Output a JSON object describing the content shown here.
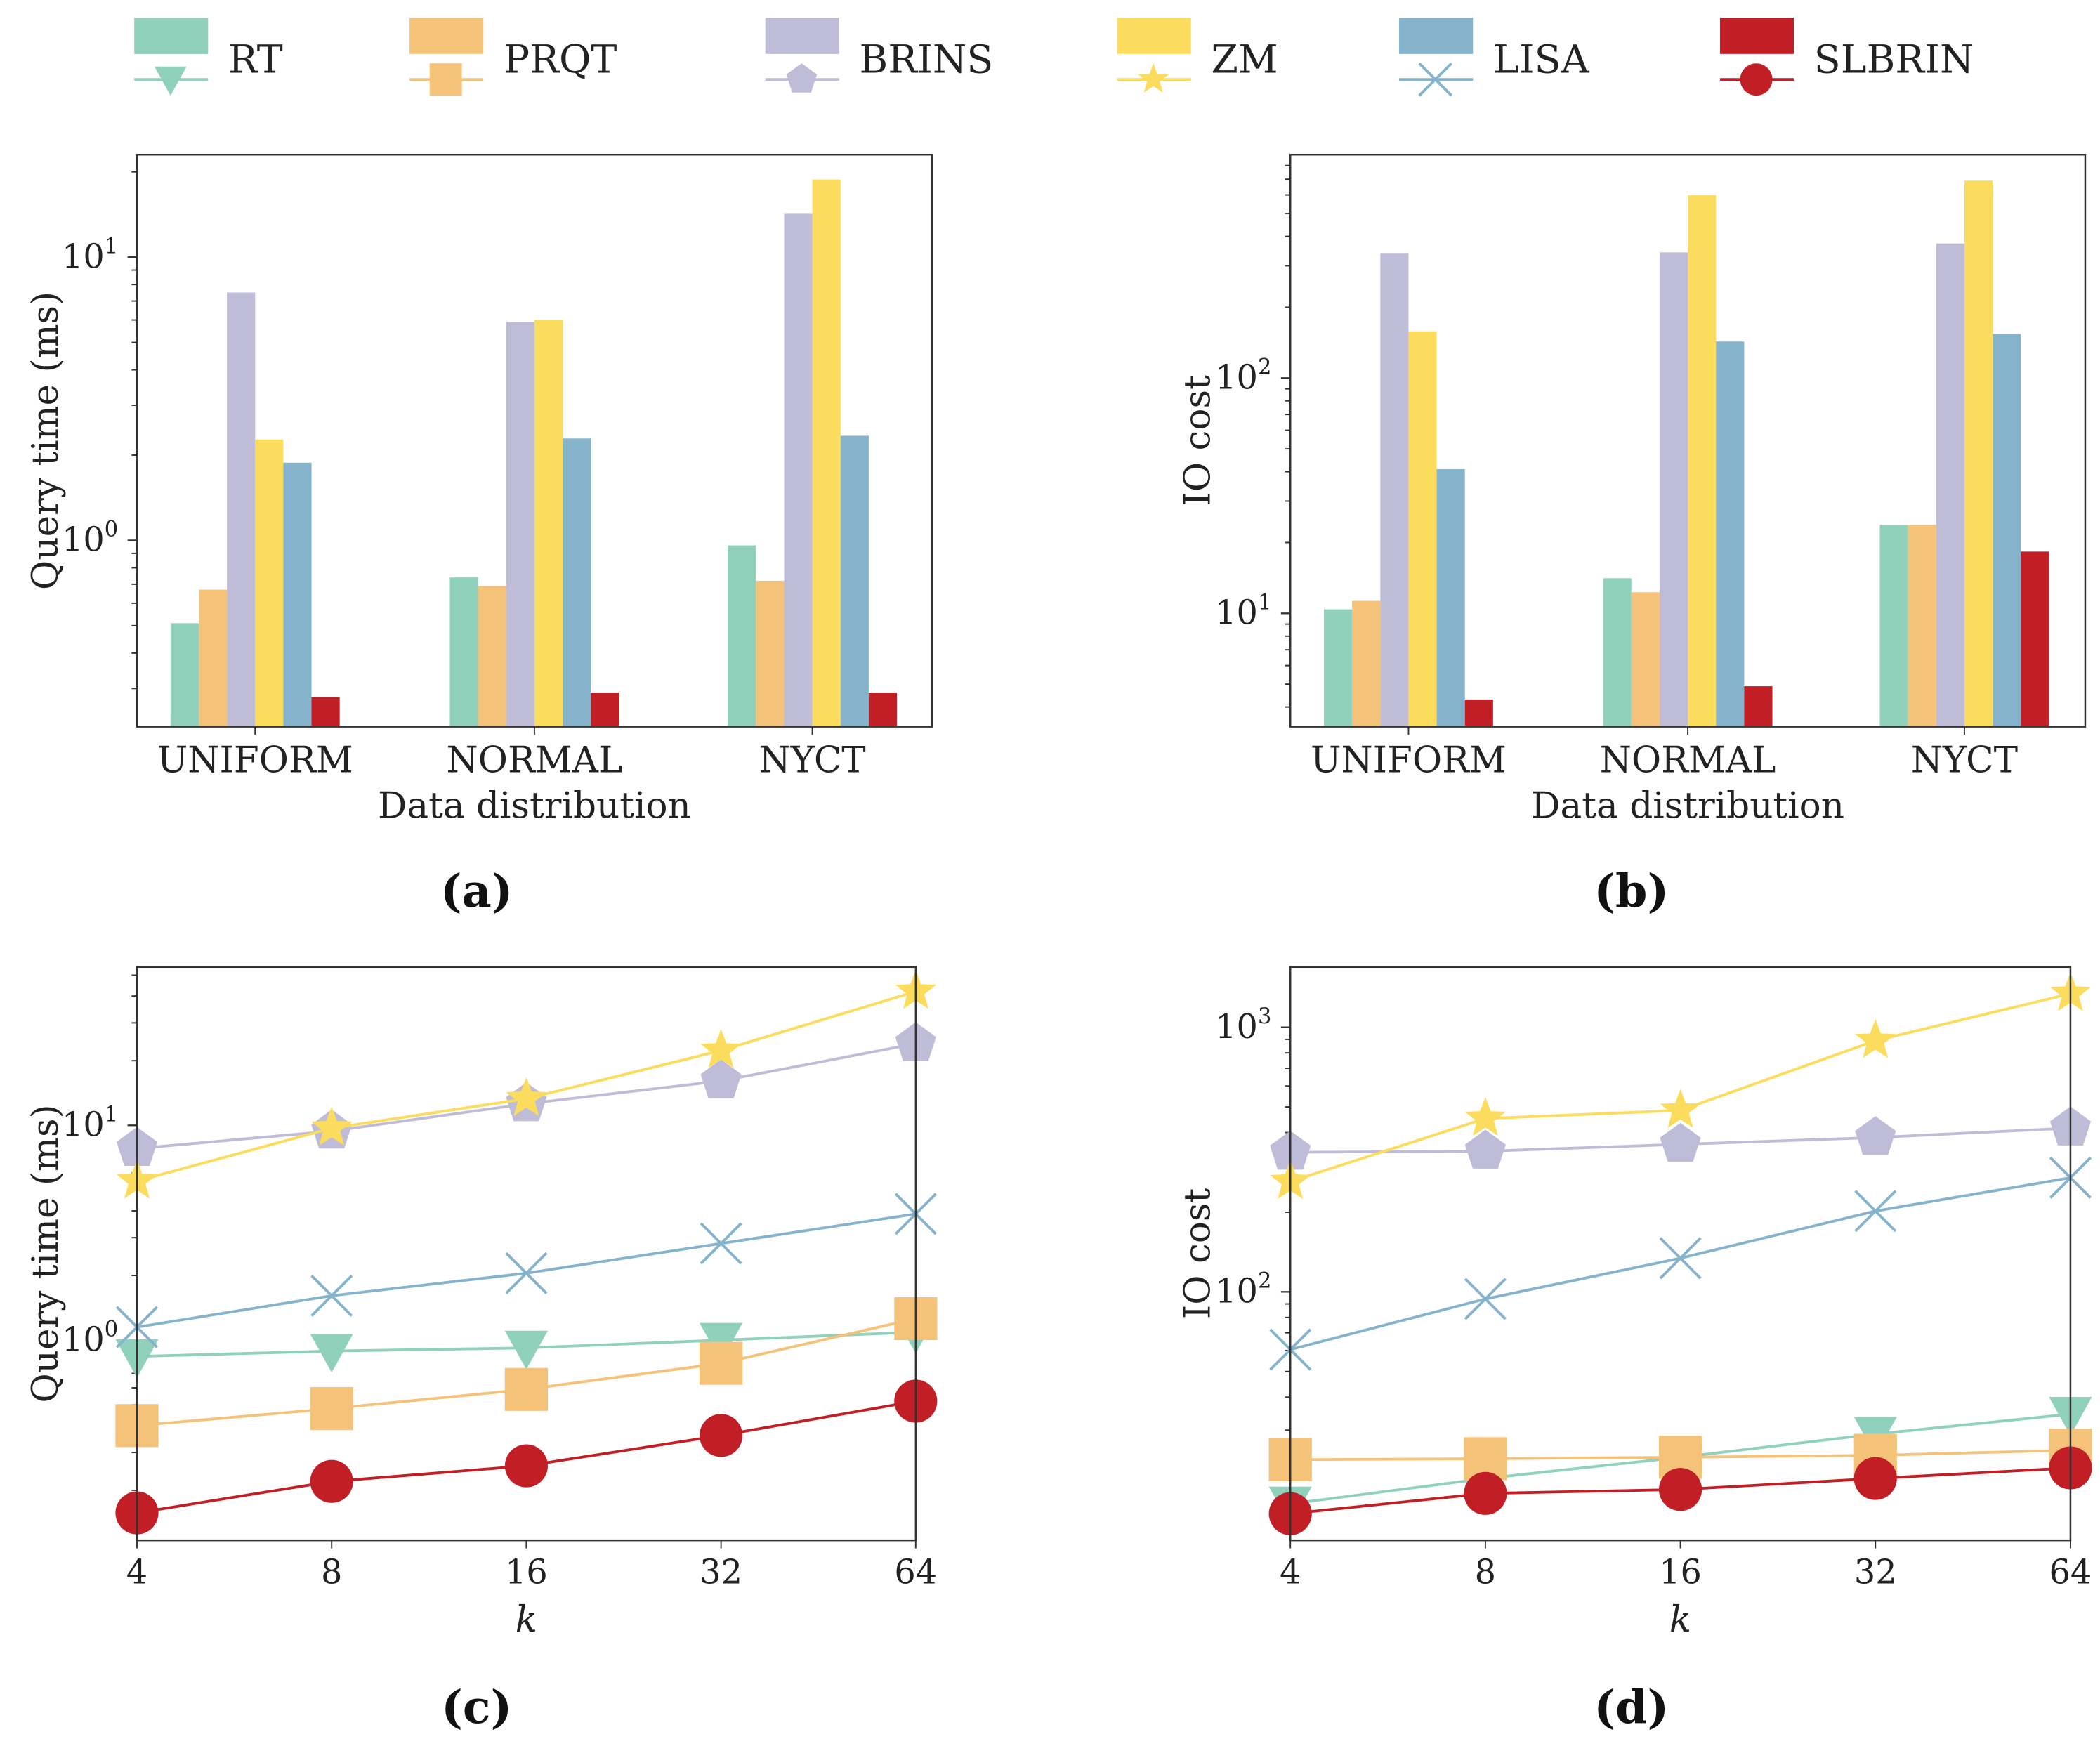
{
  "legend": [
    {
      "name": "RT",
      "color": "#8fd1bb",
      "marker": "triangle-down"
    },
    {
      "name": "PRQT",
      "color": "#f5c27a",
      "marker": "square"
    },
    {
      "name": "BRINS",
      "color": "#bfbcd8",
      "marker": "pentagon"
    },
    {
      "name": "ZM",
      "color": "#fcdc5c",
      "marker": "star"
    },
    {
      "name": "LISA",
      "color": "#84b3cb",
      "marker": "x"
    },
    {
      "name": "SLBRIN",
      "color": "#c11f25",
      "marker": "circle"
    }
  ],
  "chart_data": [
    {
      "panel": "(a)",
      "type": "bar",
      "xlabel": "Data distribution",
      "ylabel": "Query time (ms)",
      "yscale": "log",
      "ylim": [
        0.22,
        23
      ],
      "ytick_exponents": [
        0,
        1
      ],
      "categories": [
        "UNIFORM",
        "NORMAL",
        "NYCT"
      ],
      "series": [
        {
          "name": "RT",
          "values": [
            0.51,
            0.74,
            0.96
          ]
        },
        {
          "name": "PRQT",
          "values": [
            0.67,
            0.69,
            0.72
          ]
        },
        {
          "name": "BRINS",
          "values": [
            7.5,
            5.9,
            14.3
          ]
        },
        {
          "name": "ZM",
          "values": [
            2.27,
            6.0,
            18.8
          ]
        },
        {
          "name": "LISA",
          "values": [
            1.88,
            2.29,
            2.34
          ]
        },
        {
          "name": "SLBRIN",
          "values": [
            0.28,
            0.29,
            0.29
          ]
        }
      ]
    },
    {
      "panel": "(b)",
      "type": "bar",
      "xlabel": "Data distribution",
      "ylabel": "IO cost",
      "yscale": "log",
      "ylim": [
        3.3,
        890
      ],
      "ytick_exponents": [
        1,
        2
      ],
      "categories": [
        "UNIFORM",
        "NORMAL",
        "NYCT"
      ],
      "series": [
        {
          "name": "RT",
          "values": [
            10.4,
            14.1,
            23.8
          ]
        },
        {
          "name": "PRQT",
          "values": [
            11.3,
            12.3,
            23.8
          ]
        },
        {
          "name": "BRINS",
          "values": [
            340,
            342,
            373
          ]
        },
        {
          "name": "ZM",
          "values": [
            158,
            598,
            690
          ]
        },
        {
          "name": "LISA",
          "values": [
            41,
            143,
            154
          ]
        },
        {
          "name": "SLBRIN",
          "values": [
            4.3,
            4.9,
            18.3
          ]
        }
      ]
    },
    {
      "panel": "(c)",
      "type": "line",
      "xlabel": "k",
      "ylabel": "Query time (ms)",
      "xscale": "log2",
      "yscale": "log",
      "xlim": [
        4,
        64
      ],
      "ylim": [
        0.117,
        54.6
      ],
      "ytick_exponents": [
        0,
        1
      ],
      "x": [
        4,
        8,
        16,
        32,
        64
      ],
      "series": [
        {
          "name": "RT",
          "values": [
            0.84,
            0.89,
            0.92,
            1.0,
            1.09
          ]
        },
        {
          "name": "PRQT",
          "values": [
            0.4,
            0.48,
            0.59,
            0.78,
            1.26
          ]
        },
        {
          "name": "BRINS",
          "values": [
            7.8,
            9.4,
            12.6,
            16.1,
            24
          ]
        },
        {
          "name": "ZM",
          "values": [
            5.5,
            9.7,
            13.3,
            22.3,
            42
          ]
        },
        {
          "name": "LISA",
          "values": [
            1.15,
            1.61,
            2.05,
            2.82,
            3.87
          ]
        },
        {
          "name": "SLBRIN",
          "values": [
            0.157,
            0.22,
            0.26,
            0.36,
            0.52
          ]
        }
      ]
    },
    {
      "panel": "(d)",
      "type": "line",
      "xlabel": "k",
      "ylabel": "IO cost",
      "xscale": "log2",
      "yscale": "log",
      "xlim": [
        4,
        64
      ],
      "ylim": [
        11.5,
        1690
      ],
      "ytick_exponents": [
        2,
        3
      ],
      "x": [
        4,
        8,
        16,
        32,
        64
      ],
      "series": [
        {
          "name": "RT",
          "values": [
            15.8,
            19.7,
            23.7,
            29,
            34.5
          ]
        },
        {
          "name": "PRQT",
          "values": [
            23.2,
            23.4,
            23.7,
            24.1,
            25.2
          ]
        },
        {
          "name": "BRINS",
          "values": [
            337,
            340,
            361,
            383,
            416
          ]
        },
        {
          "name": "ZM",
          "values": [
            261,
            452,
            485,
            890,
            1340
          ]
        },
        {
          "name": "LISA",
          "values": [
            60.5,
            94,
            134,
            202,
            270
          ]
        },
        {
          "name": "SLBRIN",
          "values": [
            14.5,
            17.3,
            17.9,
            19.7,
            21.6
          ]
        }
      ]
    }
  ]
}
